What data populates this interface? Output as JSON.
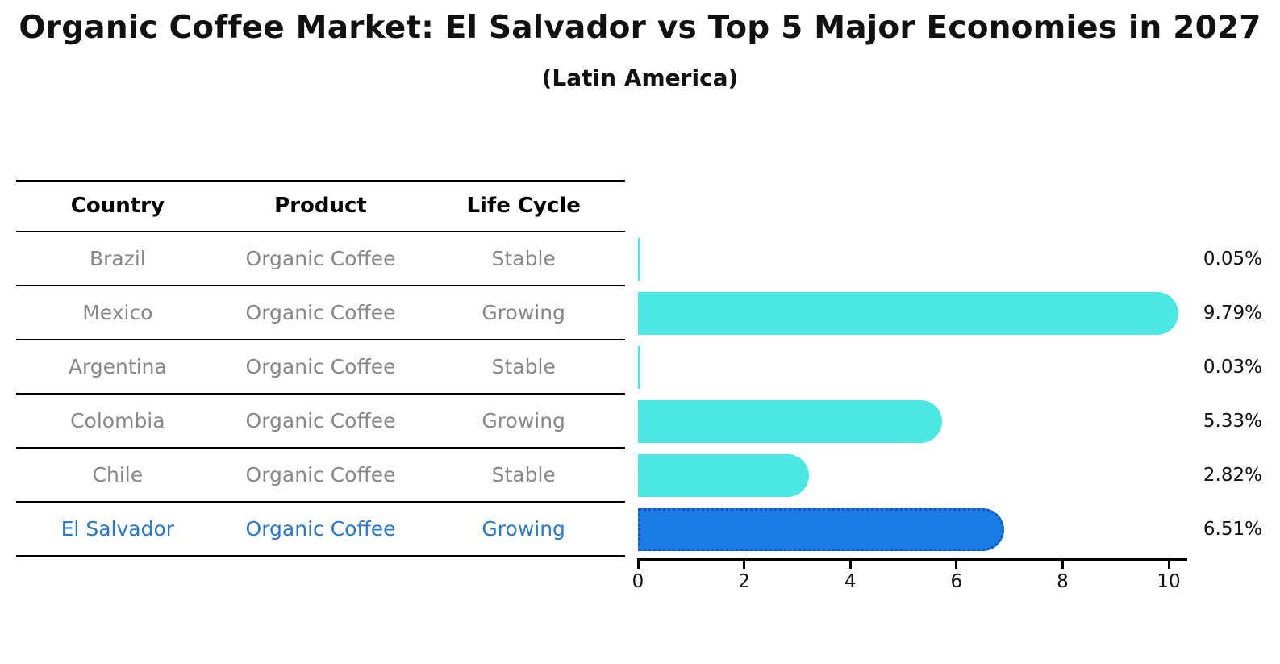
{
  "title": "Organic Coffee Market: El Salvador vs Top 5 Major Economies in 2027",
  "subtitle": "(Latin America)",
  "table": {
    "headers": [
      "Country",
      "Product",
      "Life Cycle"
    ],
    "rows": [
      {
        "country": "Brazil",
        "product": "Organic Coffee",
        "life_cycle": "Stable",
        "highlight": false
      },
      {
        "country": "Mexico",
        "product": "Organic Coffee",
        "life_cycle": "Growing",
        "highlight": false
      },
      {
        "country": "Argentina",
        "product": "Organic Coffee",
        "life_cycle": "Stable",
        "highlight": false
      },
      {
        "country": "Colombia",
        "product": "Organic Coffee",
        "life_cycle": "Growing",
        "highlight": false
      },
      {
        "country": "Chile",
        "product": "Organic Coffee",
        "life_cycle": "Stable",
        "highlight": false
      },
      {
        "country": "El Salvador",
        "product": "Organic Coffee",
        "life_cycle": "Growing",
        "highlight": true
      }
    ]
  },
  "chart_data": {
    "type": "bar",
    "orientation": "horizontal",
    "title": "Organic Coffee Market: El Salvador vs Top 5 Major Economies in 2027",
    "subtitle": "(Latin America)",
    "categories": [
      "Brazil",
      "Mexico",
      "Argentina",
      "Colombia",
      "Chile",
      "El Salvador"
    ],
    "values": [
      0.05,
      9.79,
      0.03,
      5.33,
      2.82,
      6.51
    ],
    "value_labels": [
      "0.05%",
      "9.79%",
      "0.03%",
      "5.33%",
      "2.82%",
      "6.51%"
    ],
    "xlabel": "",
    "ylabel": "",
    "xlim": [
      0,
      10
    ],
    "x_ticks": [
      "0",
      "2",
      "4",
      "6",
      "8",
      "10"
    ],
    "grid": false,
    "legend_position": "none",
    "highlight_index": 5,
    "bar_color": "#4ae7e3",
    "highlight_bar_color": "#1b7ce5",
    "highlight_border_color": "#0f55c4",
    "highlight_text_color": "#2878d0",
    "label_color": "#111111",
    "table_text_color": "#878787"
  }
}
